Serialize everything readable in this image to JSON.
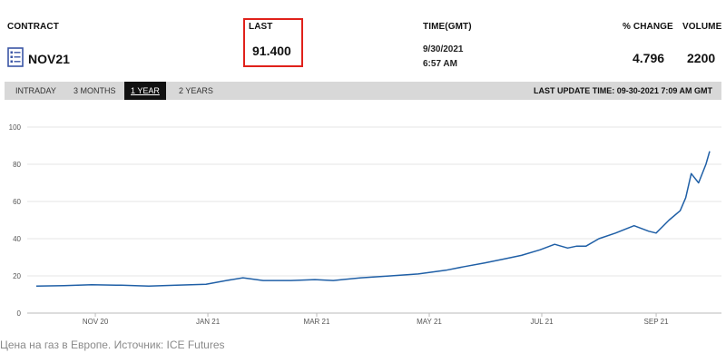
{
  "header": {
    "contract_label": "CONTRACT",
    "contract_value": "NOV21",
    "last_label": "LAST",
    "last_value": "91.400",
    "time_label": "TIME(GMT)",
    "time_date": "9/30/2021",
    "time_clock": "6:57 AM",
    "change_label": "% CHANGE",
    "change_value": "4.796",
    "volume_label": "VOLUME",
    "volume_value": "2200",
    "contract_icon": "document-list-icon",
    "highlight_color": "#e0211b"
  },
  "tabs": [
    {
      "label": "INTRADAY",
      "active": false
    },
    {
      "label": "3 MONTHS",
      "active": false
    },
    {
      "label": "1 YEAR",
      "active": true
    },
    {
      "label": "2 YEARS",
      "active": false
    }
  ],
  "last_update": "LAST UPDATE TIME: 09-30-2021 7:09 AM GMT",
  "caption": "Цена на газ в Европе. Источник: ICE Futures",
  "chart_data": {
    "type": "line",
    "title": "",
    "xlabel": "",
    "ylabel": "",
    "ylim": [
      0,
      100
    ],
    "yticks": [
      0,
      20,
      40,
      60,
      80,
      100
    ],
    "xticks": [
      "NOV 20",
      "JAN 21",
      "MAR 21",
      "MAY 21",
      "JUL 21",
      "SEP 21"
    ],
    "grid": "horizontal",
    "line_color": "#1f5fa6",
    "x": [
      "2020-09-30",
      "2020-10-15",
      "2020-10-30",
      "2020-11-15",
      "2020-11-30",
      "2020-12-15",
      "2020-12-31",
      "2021-01-11",
      "2021-01-20",
      "2021-01-31",
      "2021-02-15",
      "2021-02-28",
      "2021-03-10",
      "2021-03-25",
      "2021-04-10",
      "2021-04-25",
      "2021-05-10",
      "2021-05-20",
      "2021-05-31",
      "2021-06-10",
      "2021-06-20",
      "2021-06-30",
      "2021-07-08",
      "2021-07-15",
      "2021-07-20",
      "2021-07-25",
      "2021-08-01",
      "2021-08-10",
      "2021-08-20",
      "2021-08-28",
      "2021-09-01",
      "2021-09-08",
      "2021-09-14",
      "2021-09-17",
      "2021-09-20",
      "2021-09-24",
      "2021-09-28",
      "2021-09-30"
    ],
    "values": [
      14.5,
      14.8,
      15.2,
      15,
      14.5,
      15,
      15.5,
      17.5,
      19,
      17.5,
      17.5,
      18,
      17.5,
      19,
      20,
      21,
      23,
      25,
      27,
      29,
      31,
      34,
      37,
      35,
      36,
      36,
      40,
      43,
      47,
      44,
      43,
      50,
      55,
      62,
      75,
      70,
      80,
      87
    ]
  }
}
